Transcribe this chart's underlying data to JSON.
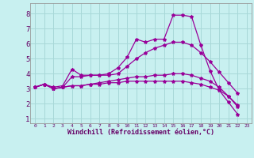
{
  "xlabel": "Windchill (Refroidissement éolien,°C)",
  "background_color": "#c8f0f0",
  "grid_color": "#a8d8d8",
  "line_color": "#990099",
  "series1_y": [
    3.1,
    3.3,
    3.1,
    3.2,
    4.3,
    3.9,
    3.9,
    3.9,
    4.0,
    4.4,
    5.1,
    6.3,
    6.1,
    6.3,
    6.3,
    7.9,
    7.9,
    7.8,
    5.9,
    4.2,
    2.9,
    2.1,
    1.3
  ],
  "series2_y": [
    3.1,
    3.3,
    3.0,
    3.1,
    3.8,
    3.8,
    3.9,
    3.9,
    3.9,
    4.0,
    4.5,
    5.0,
    5.4,
    5.7,
    5.9,
    6.1,
    6.1,
    5.9,
    5.4,
    4.8,
    4.1,
    3.4,
    2.7
  ],
  "series3_y": [
    3.1,
    3.3,
    3.0,
    3.1,
    3.2,
    3.2,
    3.3,
    3.4,
    3.5,
    3.6,
    3.7,
    3.8,
    3.8,
    3.9,
    3.9,
    4.0,
    4.0,
    3.9,
    3.7,
    3.5,
    3.1,
    2.5,
    1.8
  ],
  "series4_y": [
    3.1,
    3.3,
    3.0,
    3.1,
    3.2,
    3.2,
    3.3,
    3.3,
    3.4,
    3.4,
    3.5,
    3.5,
    3.5,
    3.5,
    3.5,
    3.5,
    3.5,
    3.4,
    3.3,
    3.1,
    2.9,
    2.5,
    1.9
  ],
  "ylim": [
    0.7,
    8.7
  ],
  "xlim": [
    -0.5,
    23.5
  ],
  "yticks": [
    1,
    2,
    3,
    4,
    5,
    6,
    7,
    8
  ],
  "xticks": [
    0,
    1,
    2,
    3,
    4,
    5,
    6,
    7,
    8,
    9,
    10,
    11,
    12,
    13,
    14,
    15,
    16,
    17,
    18,
    19,
    20,
    21,
    22,
    23
  ],
  "xlabel_fontsize": 6.0,
  "ytick_fontsize": 6.5,
  "xtick_fontsize": 4.5,
  "line_width": 0.9,
  "marker_size": 3.0
}
